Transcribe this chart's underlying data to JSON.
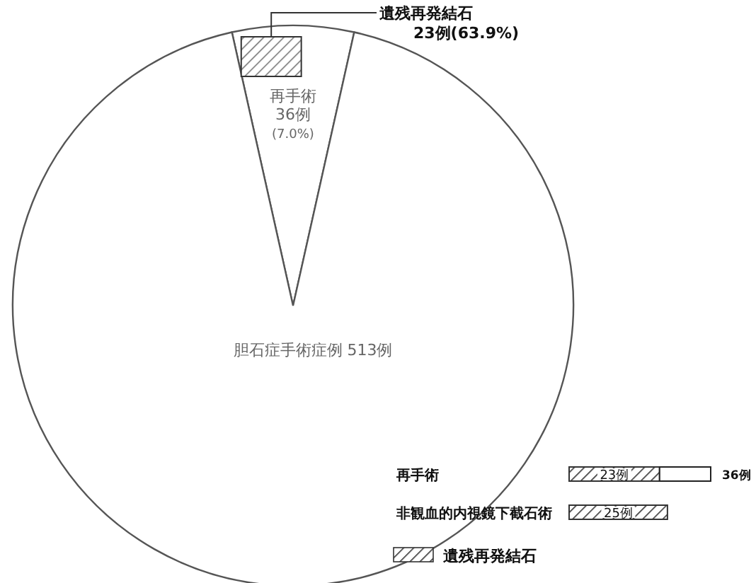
{
  "chart_data": [
    {
      "type": "pie",
      "categories": [
        "再手術",
        null
      ],
      "values": [
        7.0,
        93.0
      ],
      "value_labels": [
        "36例 (7.0%)",
        null
      ],
      "colors": [
        "#ffffff",
        "#ffffff"
      ],
      "annotations": [
        "遺残再発結石 23例(63.9%)",
        "胆石症手術症例 513例"
      ]
    },
    {
      "type": "bar",
      "orientation": "horizontal",
      "stacked": true,
      "categories": [
        "再手術",
        "非観血的内視鏡下截石術"
      ],
      "xlim": [
        0,
        36
      ],
      "series": [
        {
          "name": "遺残再発結石",
          "color": "#333333",
          "values": [
            23,
            25
          ],
          "value_labels": [
            "23例",
            "25例"
          ]
        },
        {
          "color": "#ffffff",
          "values": [
            13,
            null
          ]
        }
      ],
      "totals": [
        "36例",
        null
      ],
      "legend": "bottom"
    }
  ]
}
